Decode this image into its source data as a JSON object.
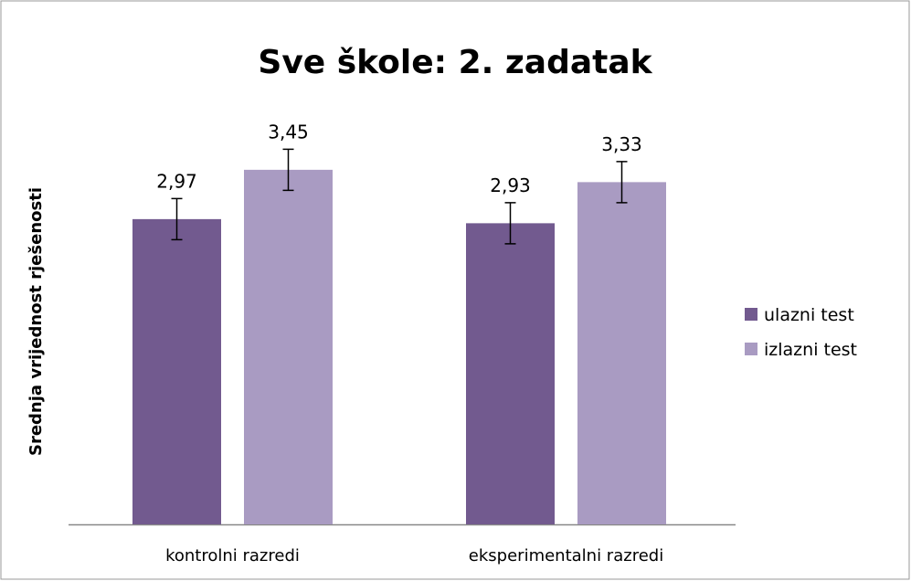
{
  "chart_data": {
    "type": "bar",
    "title": "Sve škole: 2. zadatak",
    "y_label": "Srednja vrijednost rješenosti",
    "categories": [
      "kontrolni razredi",
      "eksperimentalni razredi"
    ],
    "series": [
      {
        "name": "ulazni test",
        "color": "#725a8f",
        "values": [
          2.97,
          2.93
        ],
        "value_labels": [
          "2,97",
          "2,93"
        ],
        "errors": [
          0.2,
          0.2
        ]
      },
      {
        "name": "izlazni test",
        "color": "#a99bc2",
        "values": [
          3.45,
          3.33
        ],
        "value_labels": [
          "3,45",
          "3,33"
        ],
        "errors": [
          0.2,
          0.2
        ]
      }
    ],
    "ylim": [
      0,
      4
    ],
    "legend": "right"
  }
}
